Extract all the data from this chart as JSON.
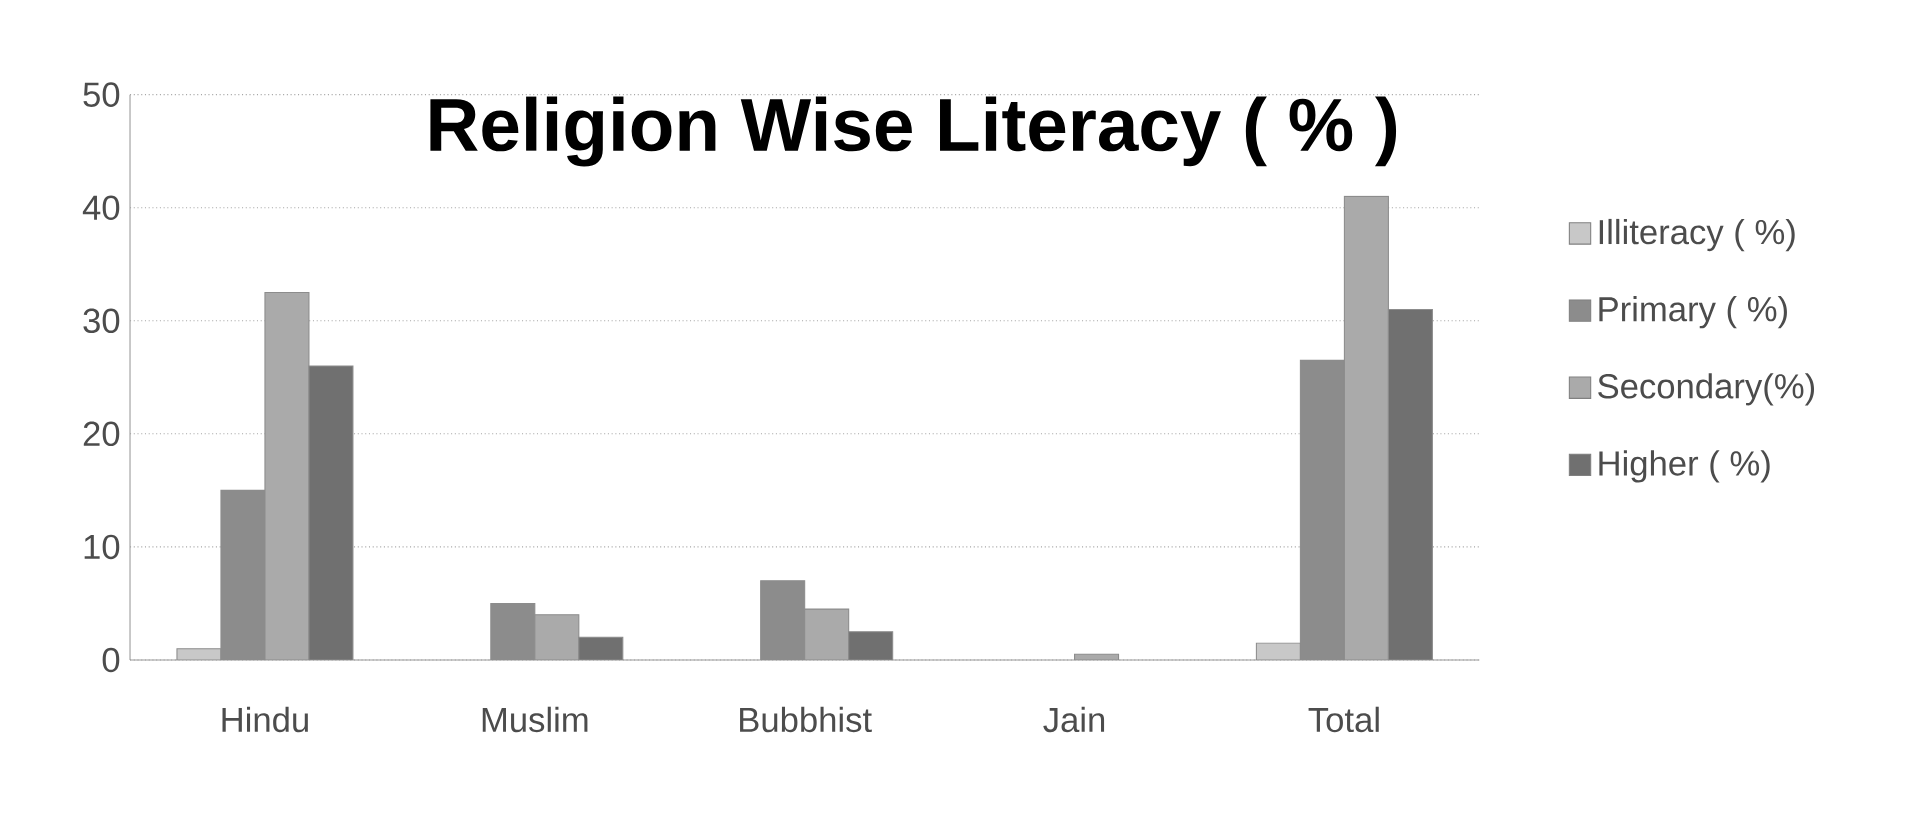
{
  "chart_data": {
    "type": "bar",
    "title": "Religion Wise Literacy   ( % )",
    "categories": [
      "Hindu",
      "Muslim",
      "Bubbhist",
      "Jain",
      "Total"
    ],
    "series": [
      {
        "name": "Illiteracy ( %)",
        "color": "#c8c8c8",
        "values": [
          1,
          null,
          null,
          null,
          1.5
        ]
      },
      {
        "name": "Primary ( %)",
        "color": "#8c8c8c",
        "values": [
          15,
          5,
          7,
          null,
          26.5
        ]
      },
      {
        "name": "Secondary(%)",
        "color": "#aaaaaa",
        "values": [
          32.5,
          4,
          4.5,
          0.5,
          41
        ]
      },
      {
        "name": "Higher ( %)",
        "color": "#707070",
        "values": [
          26,
          2,
          2.5,
          null,
          31
        ]
      }
    ],
    "ylim": [
      0,
      50
    ],
    "yticks": [
      0,
      10,
      20,
      30,
      40,
      50
    ],
    "grid": "y",
    "legend": "right"
  }
}
